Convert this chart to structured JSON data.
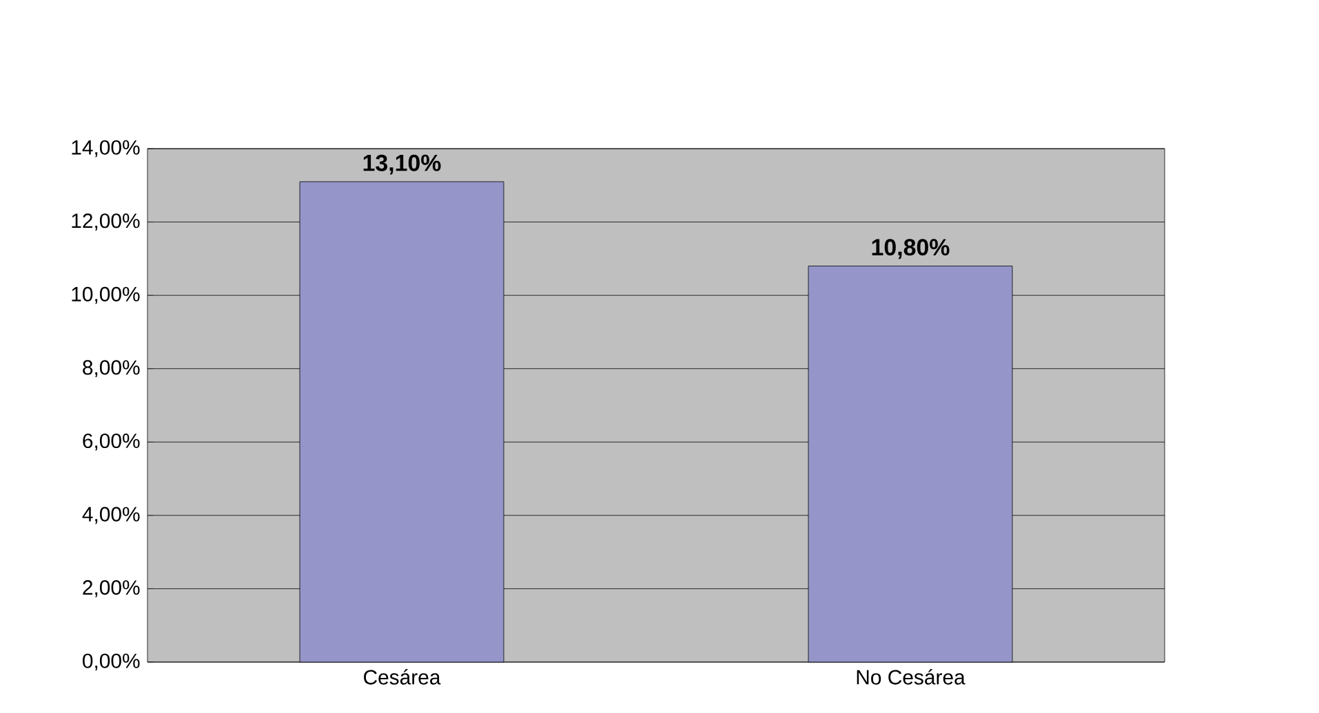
{
  "chart_data": {
    "type": "bar",
    "categories": [
      "Cesárea",
      "No Cesárea"
    ],
    "values": [
      13.1,
      10.8
    ],
    "value_labels": [
      "13,10%",
      "10,80%"
    ],
    "color": "#9595c9",
    "ylim": [
      0,
      14
    ],
    "yticks": [
      {
        "value": 0,
        "label": "0,00%"
      },
      {
        "value": 2,
        "label": "2,00%"
      },
      {
        "value": 4,
        "label": "4,00%"
      },
      {
        "value": 6,
        "label": "6,00%"
      },
      {
        "value": 8,
        "label": "8,00%"
      },
      {
        "value": 10,
        "label": "10,00%"
      },
      {
        "value": 12,
        "label": "12,00%"
      },
      {
        "value": 14,
        "label": "14,00%"
      }
    ],
    "grid": "y"
  }
}
